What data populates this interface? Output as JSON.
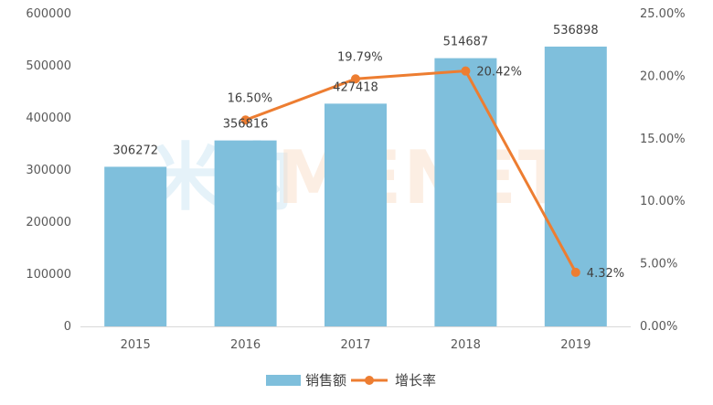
{
  "chart_data": {
    "type": "bar",
    "categories": [
      "2015",
      "2016",
      "2017",
      "2018",
      "2019"
    ],
    "series": [
      {
        "name": "销售额",
        "type": "bar",
        "axis": "left",
        "values": [
          306272,
          356816,
          427418,
          514687,
          536898
        ],
        "labels": [
          "306272",
          "356816",
          "427418",
          "514687",
          "536898"
        ],
        "color": "#7fbfdc"
      },
      {
        "name": "增长率",
        "type": "line",
        "axis": "right",
        "x": [
          "2016",
          "2017",
          "2018",
          "2019"
        ],
        "values": [
          16.5,
          19.79,
          20.42,
          4.32
        ],
        "labels": [
          "16.50%",
          "19.79%",
          "20.42%",
          "4.32%"
        ],
        "color": "#ed7d31"
      }
    ],
    "left_axis": {
      "ylim": [
        0,
        600000
      ],
      "ticks": [
        "0",
        "100000",
        "200000",
        "300000",
        "400000",
        "500000",
        "600000"
      ]
    },
    "right_axis": {
      "ylim": [
        0,
        25
      ],
      "ticks": [
        "0.00%",
        "5.00%",
        "10.00%",
        "15.00%",
        "20.00%",
        "25.00%"
      ]
    },
    "grid": false,
    "legend_position": "bottom",
    "watermark": "米内MENET"
  }
}
